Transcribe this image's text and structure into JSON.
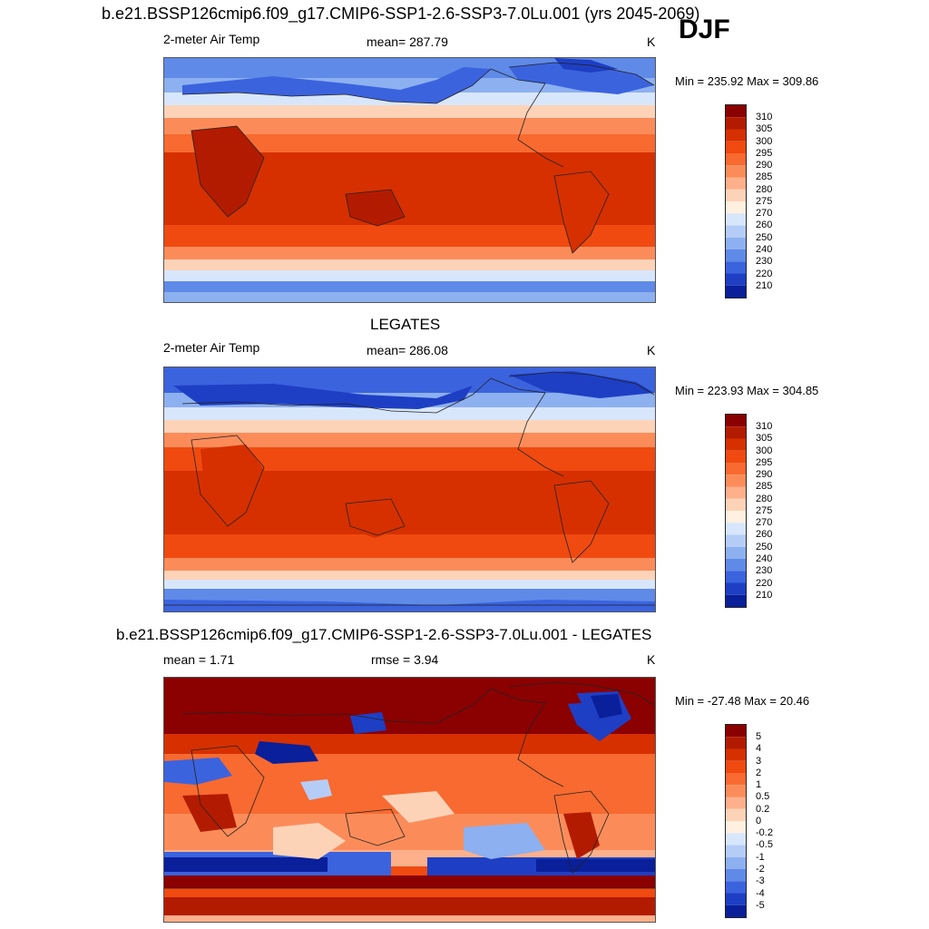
{
  "title_top": "b.e21.BSSP126cmip6.f09_g17.CMIP6-SSP1-2.6-SSP3-7.0Lu.001 (yrs 2045-2069)",
  "season": "DJF",
  "panels": [
    {
      "title": "",
      "left": "2-meter Air Temp",
      "center": "mean= 287.79",
      "units": "K",
      "minmax": "Min = 235.92 Max = 309.86",
      "levels": [
        "310",
        "305",
        "300",
        "295",
        "290",
        "285",
        "280",
        "275",
        "270",
        "260",
        "250",
        "240",
        "230",
        "220",
        "210"
      ]
    },
    {
      "title": "LEGATES",
      "left": "2-meter Air Temp",
      "center": "mean= 286.08",
      "units": "K",
      "minmax": "Min = 223.93 Max = 304.85",
      "levels": [
        "310",
        "305",
        "300",
        "295",
        "290",
        "285",
        "280",
        "275",
        "270",
        "260",
        "250",
        "240",
        "230",
        "220",
        "210"
      ]
    },
    {
      "title": "b.e21.BSSP126cmip6.f09_g17.CMIP6-SSP1-2.6-SSP3-7.0Lu.001 - LEGATES",
      "left": "mean =   1.71",
      "center": "rmse =   3.94",
      "units": "K",
      "minmax": "Min = -27.48 Max =  20.46",
      "levels": [
        "5",
        "4",
        "3",
        "2",
        "1",
        "0.5",
        "0.2",
        "0",
        "-0.2",
        "-0.5",
        "-1",
        "-2",
        "-3",
        "-4",
        "-5"
      ]
    }
  ],
  "colors": {
    "temp_scale": [
      "#8b0000",
      "#b31b00",
      "#d63000",
      "#f04a10",
      "#f86a30",
      "#fb8c5a",
      "#fdb08a",
      "#fdd3b8",
      "#fff0e0",
      "#d8e6fb",
      "#b5cdf6",
      "#8db0f0",
      "#5f8ae8",
      "#3b63de",
      "#1e3fc4",
      "#0a1f9a"
    ],
    "diff_scale": [
      "#8b0000",
      "#b31b00",
      "#d63000",
      "#f04a10",
      "#f86a30",
      "#fb8c5a",
      "#fdb08a",
      "#fdd3b8",
      "#fff0e0",
      "#d8e6fb",
      "#b5cdf6",
      "#8db0f0",
      "#5f8ae8",
      "#3b63de",
      "#1e3fc4",
      "#0a1f9a"
    ]
  }
}
